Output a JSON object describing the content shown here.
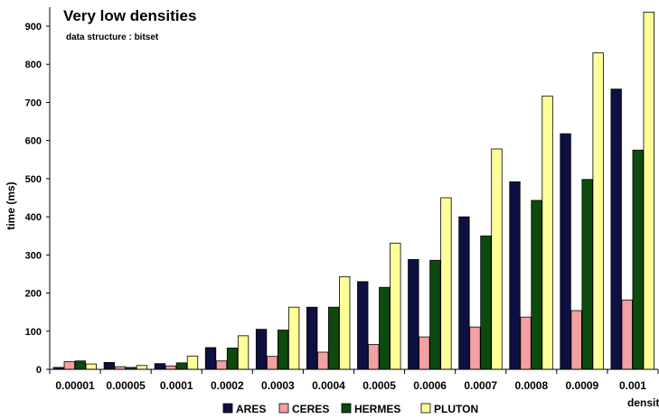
{
  "chart_data": {
    "type": "bar",
    "title": "Very low densities",
    "subtitle": "data structure : bitset",
    "xlabel": "density",
    "ylabel": "time (ms)",
    "ylim": [
      0,
      900
    ],
    "yticks": [
      0,
      100,
      200,
      300,
      400,
      500,
      600,
      700,
      800,
      900
    ],
    "categories": [
      "0.00001",
      "0.00005",
      "0.0001",
      "0.0002",
      "0.0003",
      "0.0004",
      "0.0005",
      "0.0006",
      "0.0007",
      "0.0008",
      "0.0009",
      "0.001"
    ],
    "legend_position": "bottom",
    "grid": false,
    "series": [
      {
        "name": "ARES",
        "color": "#0d1040",
        "values": [
          5,
          18,
          15,
          57,
          105,
          163,
          230,
          288,
          400,
          492,
          618,
          735
        ]
      },
      {
        "name": "CERES",
        "color": "#f2a0a4",
        "values": [
          20,
          7,
          9,
          22,
          34,
          45,
          65,
          85,
          111,
          137,
          154,
          182
        ]
      },
      {
        "name": "HERMES",
        "color": "#0d4a0d",
        "values": [
          22,
          5,
          17,
          56,
          103,
          163,
          215,
          286,
          350,
          443,
          498,
          575
        ]
      },
      {
        "name": "PLUTON",
        "color": "#ffff99",
        "values": [
          14,
          10,
          35,
          88,
          163,
          243,
          331,
          450,
          578,
          717,
          830,
          937
        ]
      }
    ]
  }
}
